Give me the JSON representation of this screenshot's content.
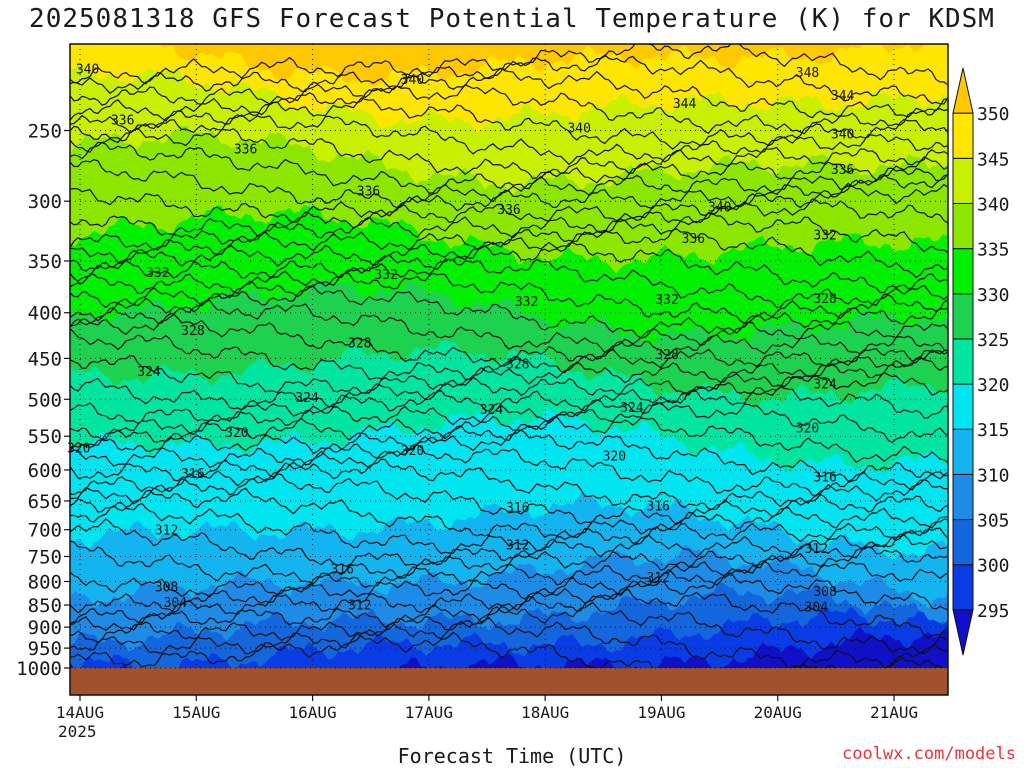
{
  "chart_data": {
    "type": "contour",
    "title": "2025081318 GFS Forecast Potential Temperature (K) for KDSM",
    "xlabel": "Forecast Time (UTC)",
    "credit": "coolwx.com/models",
    "x_ticks": [
      {
        "label": "14AUG",
        "sub": "2025"
      },
      {
        "label": "15AUG",
        "sub": ""
      },
      {
        "label": "16AUG",
        "sub": ""
      },
      {
        "label": "17AUG",
        "sub": ""
      },
      {
        "label": "18AUG",
        "sub": ""
      },
      {
        "label": "19AUG",
        "sub": ""
      },
      {
        "label": "20AUG",
        "sub": ""
      },
      {
        "label": "21AUG",
        "sub": ""
      }
    ],
    "y_ticks": [
      "250",
      "300",
      "350",
      "400",
      "450",
      "500",
      "550",
      "600",
      "650",
      "700",
      "750",
      "800",
      "850",
      "900",
      "950",
      "1000"
    ],
    "y_values": [
      250,
      300,
      350,
      400,
      450,
      500,
      550,
      600,
      650,
      700,
      750,
      800,
      850,
      900,
      950,
      1000
    ],
    "ylim": [
      200,
      1000
    ],
    "colorbar": {
      "levels": [
        "295",
        "300",
        "305",
        "310",
        "315",
        "320",
        "325",
        "330",
        "335",
        "340",
        "345",
        "350"
      ],
      "colors": [
        "#1010c8",
        "#0a3ce6",
        "#1466dc",
        "#1e8ce6",
        "#14b4f0",
        "#00e6f0",
        "#00e6a0",
        "#1ed250",
        "#00f000",
        "#8ce600",
        "#c8f000",
        "#ffe600",
        "#ffc800"
      ]
    },
    "contour_labels": [
      {
        "text": "340",
        "t": 0.02,
        "p": 213
      },
      {
        "text": "340",
        "t": 0.39,
        "p": 219
      },
      {
        "text": "348",
        "t": 0.84,
        "p": 215
      },
      {
        "text": "344",
        "t": 0.7,
        "p": 233
      },
      {
        "text": "344",
        "t": 0.88,
        "p": 228
      },
      {
        "text": "336",
        "t": 0.06,
        "p": 243
      },
      {
        "text": "340",
        "t": 0.58,
        "p": 248
      },
      {
        "text": "340",
        "t": 0.88,
        "p": 252
      },
      {
        "text": "336",
        "t": 0.2,
        "p": 262
      },
      {
        "text": "336",
        "t": 0.88,
        "p": 276
      },
      {
        "text": "336",
        "t": 0.34,
        "p": 292
      },
      {
        "text": "336",
        "t": 0.5,
        "p": 306
      },
      {
        "text": "340",
        "t": 0.74,
        "p": 304
      },
      {
        "text": "336",
        "t": 0.71,
        "p": 330
      },
      {
        "text": "332",
        "t": 0.86,
        "p": 327
      },
      {
        "text": "332",
        "t": 0.1,
        "p": 360
      },
      {
        "text": "332",
        "t": 0.36,
        "p": 362
      },
      {
        "text": "332",
        "t": 0.52,
        "p": 388
      },
      {
        "text": "332",
        "t": 0.68,
        "p": 386
      },
      {
        "text": "328",
        "t": 0.86,
        "p": 385
      },
      {
        "text": "328",
        "t": 0.14,
        "p": 418
      },
      {
        "text": "328",
        "t": 0.33,
        "p": 432
      },
      {
        "text": "328",
        "t": 0.51,
        "p": 456
      },
      {
        "text": "328",
        "t": 0.68,
        "p": 445
      },
      {
        "text": "324",
        "t": 0.09,
        "p": 465
      },
      {
        "text": "324",
        "t": 0.27,
        "p": 497
      },
      {
        "text": "324",
        "t": 0.86,
        "p": 480
      },
      {
        "text": "324",
        "t": 0.48,
        "p": 513
      },
      {
        "text": "324",
        "t": 0.64,
        "p": 510
      },
      {
        "text": "320",
        "t": 0.19,
        "p": 544
      },
      {
        "text": "320",
        "t": 0.84,
        "p": 538
      },
      {
        "text": "320",
        "t": 0.01,
        "p": 566
      },
      {
        "text": "320",
        "t": 0.39,
        "p": 570
      },
      {
        "text": "320",
        "t": 0.62,
        "p": 578
      },
      {
        "text": "316",
        "t": 0.14,
        "p": 605
      },
      {
        "text": "316",
        "t": 0.86,
        "p": 610
      },
      {
        "text": "316",
        "t": 0.51,
        "p": 660
      },
      {
        "text": "316",
        "t": 0.67,
        "p": 658
      },
      {
        "text": "312",
        "t": 0.11,
        "p": 700
      },
      {
        "text": "312",
        "t": 0.51,
        "p": 727
      },
      {
        "text": "312",
        "t": 0.85,
        "p": 734
      },
      {
        "text": "316",
        "t": 0.31,
        "p": 774
      },
      {
        "text": "312",
        "t": 0.67,
        "p": 791
      },
      {
        "text": "308",
        "t": 0.11,
        "p": 810
      },
      {
        "text": "308",
        "t": 0.86,
        "p": 820
      },
      {
        "text": "304",
        "t": 0.12,
        "p": 843
      },
      {
        "text": "312",
        "t": 0.33,
        "p": 849
      },
      {
        "text": "304",
        "t": 0.85,
        "p": 853
      }
    ]
  }
}
